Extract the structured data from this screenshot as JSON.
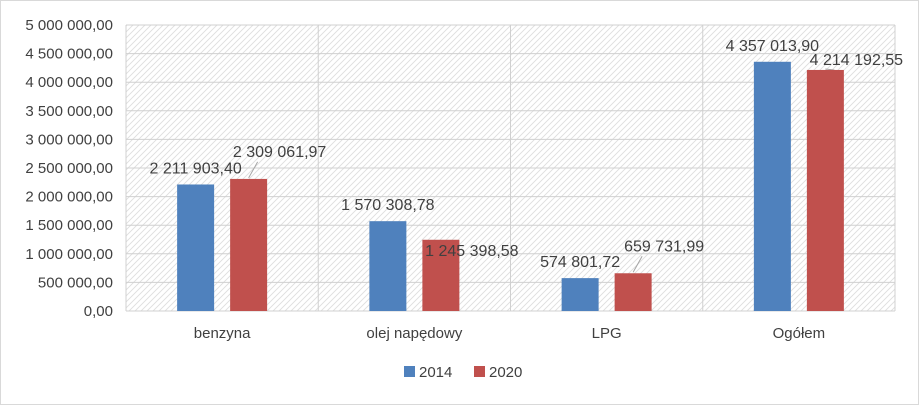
{
  "chart_data": {
    "type": "bar",
    "categories": [
      "benzyna",
      "olej napędowy",
      "LPG",
      "Ogółem"
    ],
    "series": [
      {
        "name": "2014",
        "color": "#4f81bd",
        "values": [
          2211903.4,
          1570308.78,
          574801.72,
          4357013.9
        ],
        "labels": [
          "2 211 903,40",
          "1 570 308,78",
          "574 801,72",
          "4 357 013,90"
        ]
      },
      {
        "name": "2020",
        "color": "#c0504d",
        "values": [
          2309061.97,
          1245398.58,
          659731.99,
          4214192.55
        ],
        "labels": [
          "2 309 061,97",
          "1 245 398,58",
          "659 731,99",
          "4 214 192,55"
        ]
      }
    ],
    "ylim": [
      0,
      5000000
    ],
    "yticks": [
      0,
      500000,
      1000000,
      1500000,
      2000000,
      2500000,
      3000000,
      3500000,
      4000000,
      4500000,
      5000000
    ],
    "ytick_labels": [
      "0,00",
      "500 000,00",
      "1 000 000,00",
      "1 500 000,00",
      "2 000 000,00",
      "2 500 000,00",
      "3 000 000,00",
      "3 500 000,00",
      "4 000 000,00",
      "4 500 000,00",
      "5 000 000,00"
    ],
    "grid": true,
    "legend": "bottom",
    "title": "",
    "xlabel": "",
    "ylabel": ""
  }
}
